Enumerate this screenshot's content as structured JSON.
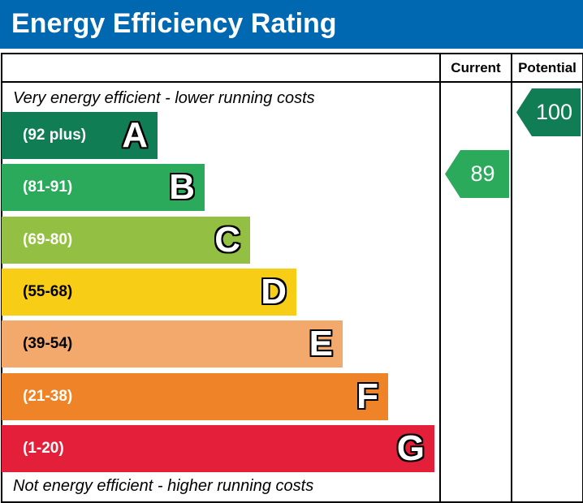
{
  "title": "Energy Efficiency Rating",
  "columns": {
    "current": "Current",
    "potential": "Potential"
  },
  "top_note": "Very energy efficient - lower running costs",
  "bottom_note": "Not energy efficient - higher running costs",
  "colors": {
    "header": "#0067b1",
    "A": "#117d54",
    "B": "#2baa5c",
    "C": "#93c043",
    "D": "#f7cd15",
    "E": "#f2a96b",
    "F": "#ee8327",
    "G": "#e41f3a"
  },
  "chart_data": {
    "type": "bar",
    "title": "Energy Efficiency Rating",
    "categories": [
      "A",
      "B",
      "C",
      "D",
      "E",
      "F",
      "G"
    ],
    "bands": [
      {
        "letter": "A",
        "range": "(92 plus)",
        "color": "#117d54"
      },
      {
        "letter": "B",
        "range": "(81-91)",
        "color": "#2baa5c"
      },
      {
        "letter": "C",
        "range": "(69-80)",
        "color": "#93c043"
      },
      {
        "letter": "D",
        "range": "(55-68)",
        "color": "#f7cd15"
      },
      {
        "letter": "E",
        "range": "(39-54)",
        "color": "#f2a96b"
      },
      {
        "letter": "F",
        "range": "(21-38)",
        "color": "#ee8327"
      },
      {
        "letter": "G",
        "range": "(1-20)",
        "color": "#e41f3a"
      }
    ],
    "current": {
      "value": 89,
      "band": "B",
      "color": "#2baa5c"
    },
    "potential": {
      "value": 100,
      "band": "A",
      "color": "#117d54"
    }
  }
}
